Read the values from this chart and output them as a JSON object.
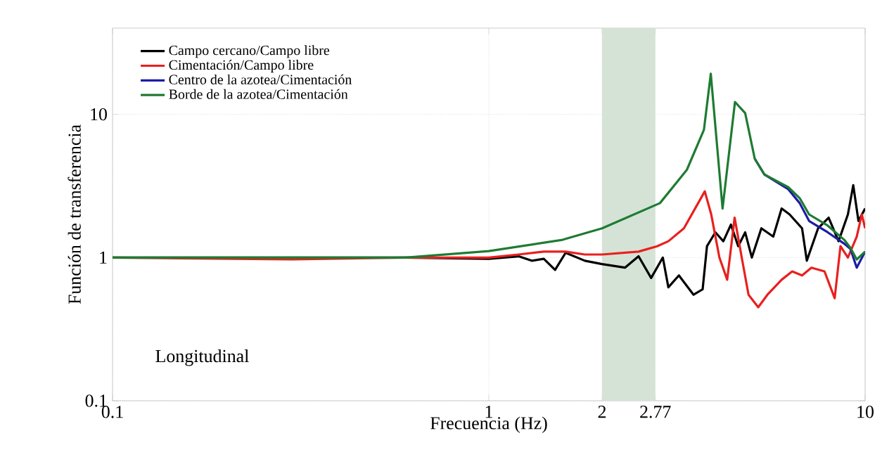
{
  "chart_data": {
    "type": "line",
    "xlabel": "Frecuencia (Hz)",
    "ylabel": "Función de transferencia",
    "annotations": [
      "Longitudinal"
    ],
    "log": "xy",
    "grid": true,
    "legend": "top left",
    "line_style": "solid",
    "marker": "none",
    "xlim": [
      0.1,
      10
    ],
    "ylim": [
      0.1,
      40
    ],
    "xticks": [
      0.1,
      1,
      2,
      2.77,
      10
    ],
    "yticks": [
      0.1,
      1,
      10
    ],
    "bands": [
      {
        "axis": "x",
        "from": 2,
        "to": 2.77,
        "color": "#d5e3d6"
      }
    ],
    "series": [
      {
        "name": "Campo cercano/Campo libre",
        "color": "#000000",
        "x": [
          0.1,
          0.3,
          0.6,
          1.0,
          1.2,
          1.3,
          1.4,
          1.5,
          1.6,
          1.8,
          2.0,
          2.3,
          2.5,
          2.7,
          2.9,
          3.0,
          3.2,
          3.5,
          3.7,
          3.8,
          4.0,
          4.2,
          4.4,
          4.6,
          4.8,
          5.0,
          5.3,
          5.7,
          6.0,
          6.3,
          6.8,
          7.0,
          7.5,
          8.0,
          8.5,
          9.0,
          9.3,
          9.6,
          10
        ],
        "values": [
          1,
          1,
          1,
          0.98,
          1.02,
          0.95,
          0.98,
          0.82,
          1.08,
          0.95,
          0.9,
          0.85,
          1.02,
          0.72,
          1.0,
          0.62,
          0.75,
          0.55,
          0.6,
          1.2,
          1.5,
          1.3,
          1.7,
          1.2,
          1.5,
          1.0,
          1.6,
          1.4,
          2.2,
          2.0,
          1.6,
          0.95,
          1.6,
          1.9,
          1.3,
          2.0,
          3.2,
          1.8,
          2.2
        ]
      },
      {
        "name": "Cimentación/Campo libre",
        "color": "#e8201e",
        "x": [
          0.1,
          0.3,
          0.6,
          1.0,
          1.2,
          1.4,
          1.6,
          1.8,
          2.0,
          2.5,
          2.8,
          3.0,
          3.3,
          3.6,
          3.75,
          3.9,
          4.1,
          4.3,
          4.5,
          4.7,
          4.9,
          5.2,
          5.5,
          6.0,
          6.4,
          6.8,
          7.2,
          7.8,
          8.3,
          8.6,
          9.0,
          9.5,
          9.8,
          10
        ],
        "values": [
          1,
          0.97,
          1,
          1.0,
          1.05,
          1.1,
          1.1,
          1.05,
          1.05,
          1.1,
          1.2,
          1.3,
          1.6,
          2.4,
          2.9,
          2.0,
          1.0,
          0.7,
          1.9,
          1.0,
          0.55,
          0.45,
          0.55,
          0.7,
          0.8,
          0.75,
          0.85,
          0.8,
          0.52,
          1.2,
          1.0,
          1.4,
          2.0,
          1.6
        ]
      },
      {
        "name": "Centro de la azotea/Cimentación",
        "color": "#1c1ca6",
        "x": [
          5.09,
          5.4,
          6.25,
          6.7,
          7.1,
          7.96,
          8.8,
          9.14,
          9.5,
          10
        ],
        "values": [
          4.9,
          3.8,
          3.0,
          2.4,
          1.8,
          1.5,
          1.25,
          1.15,
          0.85,
          1.1
        ]
      },
      {
        "name": "Borde de la azotea/Cimentación",
        "color": "#1e7b32",
        "x": [
          0.1,
          0.6,
          1.0,
          1.57,
          2.0,
          2.85,
          3.36,
          3.73,
          3.89,
          4.18,
          4.51,
          4.8,
          5.09,
          5.4,
          6.25,
          6.7,
          7.1,
          7.96,
          8.8,
          9.14,
          9.5,
          10
        ],
        "values": [
          1,
          1,
          1.11,
          1.33,
          1.6,
          2.4,
          4.1,
          7.8,
          19.2,
          2.2,
          12.2,
          10.2,
          4.9,
          3.8,
          3.1,
          2.6,
          2.0,
          1.67,
          1.33,
          1.17,
          0.97,
          1.1
        ]
      }
    ]
  }
}
